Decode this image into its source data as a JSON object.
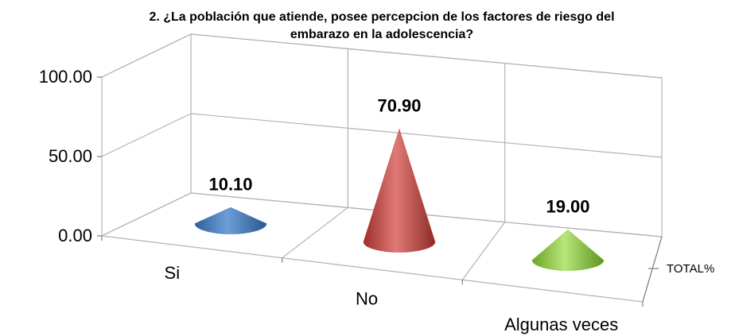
{
  "chart_data": {
    "type": "bar",
    "subtype": "3d-cone",
    "title_lines": [
      "2. ¿La población que atiende, posee percepcion de los factores de riesgo del",
      "embarazo en la  adolescencia?"
    ],
    "categories": [
      "Si",
      "No",
      "Algunas veces"
    ],
    "series": [
      {
        "name": "TOTAL%",
        "values": [
          10.1,
          70.9,
          19.0
        ],
        "value_labels": [
          "10.10",
          "70.90",
          "19.00"
        ],
        "colors": [
          "#4a7ebb",
          "#c0504d",
          "#8dc63f"
        ]
      }
    ],
    "y_ticks": [
      "0.00",
      "50.00",
      "100.00"
    ],
    "ylim": [
      0,
      100
    ],
    "depth_axis_label": "TOTAL%",
    "grid": true,
    "legend": "none"
  }
}
